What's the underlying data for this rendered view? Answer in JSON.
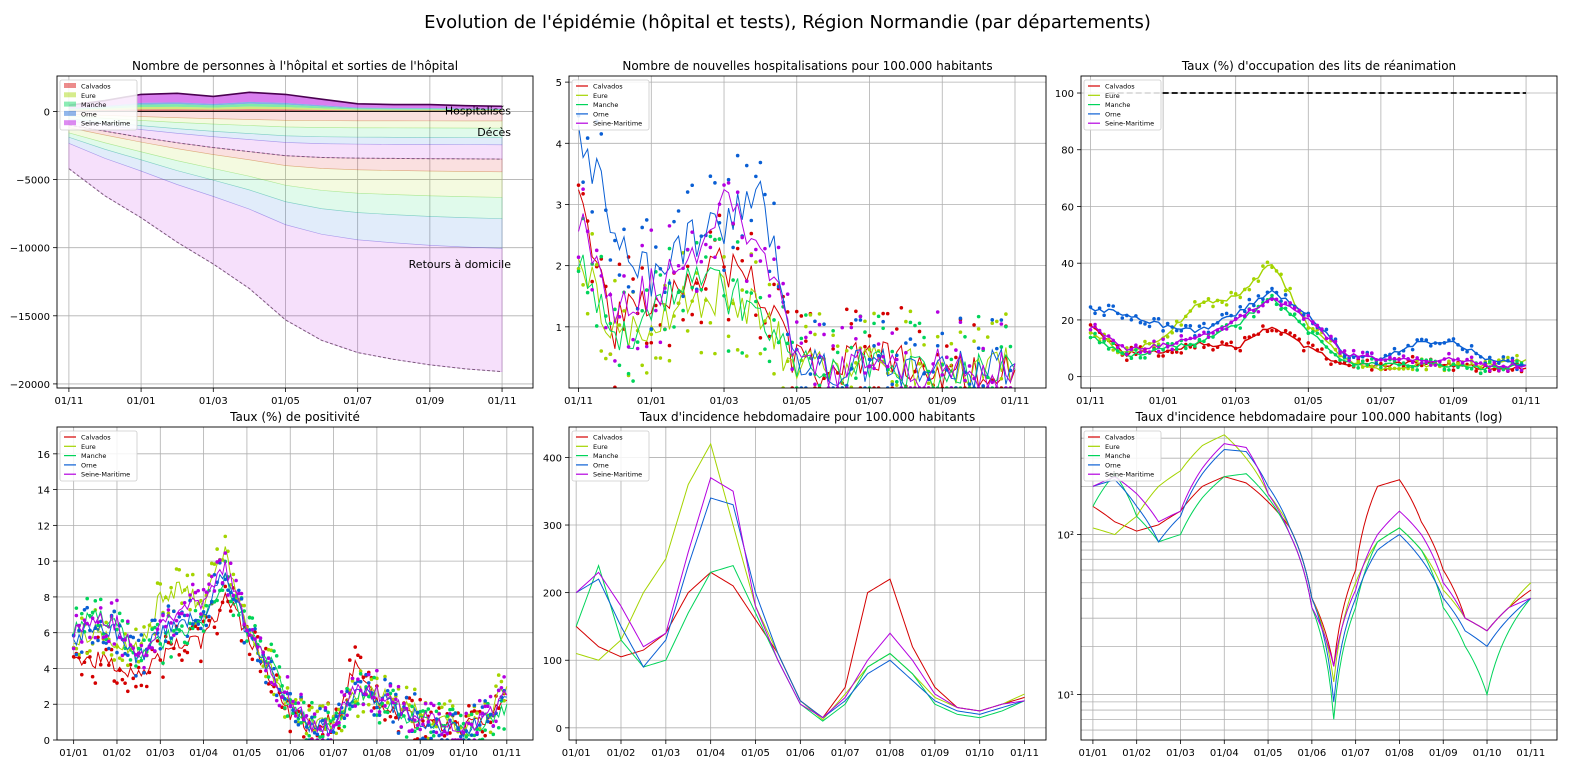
{
  "page_title": "Evolution de l'épidémie (hôpital et tests), Région Normandie (par départements)",
  "colors": {
    "Calvados": "#d40000",
    "Eure": "#a4d400",
    "Manche": "#00d45a",
    "Orne": "#0a5fd4",
    "Seine-Maritime": "#b400e0"
  },
  "legend_entries": [
    "Calvados",
    "Eure",
    "Manche",
    "Orne",
    "Seine-Maritime"
  ],
  "chart_data": [
    {
      "id": "hospital",
      "type": "area",
      "title": "Nombre de personnes à l'hôpital et sorties de l'hôpital",
      "x_ticks": [
        "01/11",
        "01/01",
        "01/03",
        "01/05",
        "01/07",
        "01/09",
        "01/11"
      ],
      "y_ticks": [
        "0",
        "−5000",
        "−10000",
        "−15000",
        "−20000"
      ],
      "y_tick_values": [
        0,
        -5000,
        -10000,
        -15000,
        -20000
      ],
      "ylim": [
        -20300,
        2600
      ],
      "legend": "top-left",
      "annotations": [
        "Hospitalisés",
        "Décès",
        "Retours à domicile"
      ],
      "x_months": [
        0,
        1,
        2,
        3,
        4,
        5,
        6,
        7,
        8,
        9,
        10,
        11,
        12
      ],
      "hospitalises_total": [
        450,
        800,
        1250,
        1330,
        1100,
        1400,
        1250,
        900,
        560,
        500,
        500,
        420,
        380
      ],
      "deces_total": [
        -1000,
        -1450,
        -1900,
        -2300,
        -2650,
        -2950,
        -3250,
        -3380,
        -3430,
        -3450,
        -3470,
        -3480,
        -3500
      ],
      "retours_total": [
        -4200,
        -6200,
        -7800,
        -9600,
        -11200,
        -13000,
        -15300,
        -16800,
        -17700,
        -18200,
        -18600,
        -18900,
        -19100
      ]
    },
    {
      "id": "new-hosp",
      "type": "line",
      "title": "Nombre de nouvelles hospitalisations pour 100.000 habitants",
      "x_ticks": [
        "01/11",
        "01/01",
        "01/03",
        "01/05",
        "01/07",
        "01/09",
        "01/11"
      ],
      "y_ticks": [
        "1",
        "2",
        "3",
        "4",
        "5"
      ],
      "y_tick_values": [
        1,
        2,
        3,
        4,
        5
      ],
      "ylim": [
        0,
        5.1
      ],
      "legend": "top-left",
      "x_months": [
        0,
        1,
        2,
        3,
        4,
        5,
        6,
        7,
        8,
        9,
        10,
        11,
        12
      ],
      "series": [
        {
          "name": "Calvados",
          "values": [
            3.2,
            1.0,
            1.5,
            1.8,
            2.0,
            1.6,
            0.4,
            0.2,
            0.6,
            0.3,
            0.2,
            0.2,
            0.3
          ]
        },
        {
          "name": "Eure",
          "values": [
            2.2,
            0.8,
            1.1,
            1.4,
            1.6,
            1.2,
            0.3,
            0.2,
            0.4,
            0.3,
            0.2,
            0.2,
            0.4
          ]
        },
        {
          "name": "Manche",
          "values": [
            2.0,
            0.7,
            1.2,
            1.8,
            1.6,
            1.2,
            0.3,
            0.2,
            0.3,
            0.2,
            0.2,
            0.2,
            0.3
          ]
        },
        {
          "name": "Orne",
          "values": [
            4.2,
            2.6,
            1.8,
            2.4,
            2.6,
            3.2,
            0.5,
            0.2,
            0.4,
            0.3,
            0.3,
            0.3,
            0.4
          ]
        },
        {
          "name": "Seine-Maritime",
          "values": [
            2.8,
            1.4,
            1.6,
            2.0,
            3.2,
            2.4,
            0.4,
            0.2,
            0.4,
            0.3,
            0.3,
            0.2,
            0.4
          ]
        }
      ]
    },
    {
      "id": "rea",
      "type": "line",
      "title": "Taux (%) d'occupation des lits de réanimation",
      "x_ticks": [
        "01/11",
        "01/01",
        "01/03",
        "01/05",
        "01/07",
        "01/09",
        "01/11"
      ],
      "y_ticks": [
        "0",
        "20",
        "40",
        "60",
        "80",
        "100"
      ],
      "y_tick_values": [
        0,
        20,
        40,
        60,
        80,
        100
      ],
      "ylim": [
        -4,
        106
      ],
      "legend": "top-left",
      "reference_line": 100,
      "x_months": [
        0,
        1,
        2,
        3,
        4,
        5,
        6,
        7,
        8,
        9,
        10,
        11,
        12
      ],
      "series": [
        {
          "name": "Calvados",
          "values": [
            18,
            8,
            9,
            12,
            10,
            18,
            10,
            4,
            4,
            5,
            4,
            3,
            3
          ]
        },
        {
          "name": "Eure",
          "values": [
            16,
            8,
            14,
            26,
            28,
            40,
            18,
            6,
            2,
            4,
            4,
            4,
            6
          ]
        },
        {
          "name": "Manche",
          "values": [
            14,
            7,
            10,
            12,
            18,
            28,
            16,
            5,
            4,
            4,
            4,
            3,
            4
          ]
        },
        {
          "name": "Orne",
          "values": [
            24,
            22,
            18,
            16,
            22,
            30,
            22,
            8,
            6,
            12,
            12,
            6,
            4
          ]
        },
        {
          "name": "Seine-Maritime",
          "values": [
            18,
            10,
            11,
            14,
            20,
            28,
            20,
            8,
            6,
            6,
            6,
            4,
            4
          ]
        }
      ]
    },
    {
      "id": "positivity",
      "type": "line",
      "title": "Taux (%) de positivité",
      "x_ticks": [
        "01/01",
        "01/02",
        "01/03",
        "01/04",
        "01/05",
        "01/06",
        "01/07",
        "01/08",
        "01/09",
        "01/10",
        "01/11"
      ],
      "y_ticks": [
        "0",
        "2",
        "4",
        "6",
        "8",
        "10",
        "12",
        "14",
        "16"
      ],
      "y_tick_values": [
        0,
        2,
        4,
        6,
        8,
        10,
        12,
        14,
        16
      ],
      "ylim": [
        0,
        17.5
      ],
      "legend": "top-left",
      "x_months": [
        0,
        0.5,
        1,
        1.5,
        2,
        2.5,
        3,
        3.5,
        4,
        4.5,
        5,
        5.5,
        6,
        6.5,
        7,
        7.5,
        8,
        8.5,
        9,
        9.5,
        10
      ],
      "series": [
        {
          "name": "Calvados",
          "values": [
            4.5,
            4.5,
            4.2,
            3.8,
            4.5,
            5.5,
            5.5,
            8.0,
            6.0,
            3.5,
            1.5,
            0.7,
            1.2,
            4.0,
            2.0,
            1.5,
            1.0,
            0.8,
            0.7,
            1.2,
            2.2
          ]
        },
        {
          "name": "Eure",
          "values": [
            5.5,
            6.0,
            5.5,
            5.0,
            8.0,
            8.5,
            7.5,
            10.5,
            6.0,
            4.0,
            1.8,
            0.8,
            0.9,
            2.5,
            2.8,
            1.8,
            1.5,
            1.0,
            0.8,
            1.2,
            3.0
          ]
        },
        {
          "name": "Manche",
          "values": [
            6.0,
            7.0,
            6.5,
            4.5,
            5.5,
            6.0,
            6.5,
            9.0,
            6.0,
            4.5,
            2.0,
            0.8,
            0.5,
            2.5,
            2.2,
            1.5,
            1.2,
            0.7,
            0.5,
            1.0,
            2.0
          ]
        },
        {
          "name": "Orne",
          "values": [
            5.5,
            6.5,
            6.0,
            4.5,
            6.0,
            6.5,
            7.0,
            9.5,
            6.0,
            4.0,
            1.8,
            0.8,
            0.6,
            2.6,
            2.4,
            1.6,
            1.2,
            0.8,
            0.6,
            1.1,
            2.4
          ]
        },
        {
          "name": "Seine-Maritime",
          "values": [
            6.0,
            7.0,
            6.5,
            4.5,
            6.5,
            7.5,
            7.5,
            9.8,
            6.2,
            4.2,
            2.0,
            0.9,
            0.8,
            3.0,
            2.6,
            1.8,
            1.4,
            1.0,
            0.7,
            1.2,
            2.5
          ]
        }
      ]
    },
    {
      "id": "incidence",
      "type": "line",
      "title": "Taux d'incidence hebdomadaire pour 100.000 habitants",
      "x_ticks": [
        "01/01",
        "01/02",
        "01/03",
        "01/04",
        "01/05",
        "01/06",
        "01/07",
        "01/08",
        "01/09",
        "01/10",
        "01/11"
      ],
      "y_ticks": [
        "0",
        "100",
        "200",
        "300",
        "400"
      ],
      "y_tick_values": [
        0,
        100,
        200,
        300,
        400
      ],
      "ylim": [
        -18,
        445
      ],
      "legend": "top-left",
      "x_months": [
        0,
        0.5,
        1,
        1.5,
        2,
        2.5,
        3,
        3.5,
        4,
        4.5,
        5,
        5.5,
        6,
        6.5,
        7,
        7.5,
        8,
        8.5,
        9,
        9.5,
        10
      ],
      "series": [
        {
          "name": "Calvados",
          "values": [
            150,
            120,
            105,
            115,
            140,
            200,
            230,
            210,
            160,
            110,
            40,
            15,
            60,
            200,
            220,
            120,
            60,
            30,
            25,
            35,
            45
          ]
        },
        {
          "name": "Eure",
          "values": [
            110,
            100,
            130,
            200,
            250,
            360,
            420,
            300,
            180,
            110,
            40,
            12,
            50,
            90,
            110,
            80,
            45,
            30,
            25,
            35,
            50
          ]
        },
        {
          "name": "Manche",
          "values": [
            150,
            240,
            130,
            90,
            100,
            170,
            230,
            240,
            170,
            100,
            35,
            10,
            35,
            90,
            110,
            80,
            35,
            20,
            15,
            25,
            40
          ]
        },
        {
          "name": "Orne",
          "values": [
            200,
            220,
            150,
            90,
            130,
            240,
            340,
            330,
            200,
            110,
            40,
            15,
            40,
            80,
            100,
            70,
            40,
            25,
            20,
            30,
            40
          ]
        },
        {
          "name": "Seine-Maritime",
          "values": [
            200,
            230,
            180,
            120,
            140,
            260,
            370,
            350,
            180,
            100,
            35,
            15,
            45,
            100,
            140,
            100,
            50,
            30,
            25,
            35,
            40
          ]
        }
      ]
    },
    {
      "id": "incidence-log",
      "type": "line",
      "title": "Taux d'incidence hebdomadaire pour 100.000 habitants (log)",
      "x_ticks": [
        "01/01",
        "01/02",
        "01/03",
        "01/04",
        "01/05",
        "01/06",
        "01/07",
        "01/08",
        "01/09",
        "01/10",
        "01/11"
      ],
      "y_ticks": [
        "10¹",
        "10²"
      ],
      "y_tick_values": [
        10,
        100
      ],
      "y_scale": "log",
      "ylim": [
        5.2,
        470
      ],
      "legend": "top-left",
      "x_months": [
        0,
        0.5,
        1,
        1.5,
        2,
        2.5,
        3,
        3.5,
        4,
        4.5,
        5,
        5.5,
        6,
        6.5,
        7,
        7.5,
        8,
        8.5,
        9,
        9.5,
        10
      ],
      "series": [
        {
          "name": "Calvados",
          "values": [
            150,
            120,
            105,
            115,
            140,
            200,
            230,
            210,
            160,
            110,
            40,
            15,
            60,
            200,
            220,
            120,
            60,
            30,
            25,
            35,
            45
          ]
        },
        {
          "name": "Eure",
          "values": [
            110,
            100,
            130,
            200,
            250,
            360,
            420,
            300,
            180,
            110,
            40,
            12,
            50,
            90,
            110,
            80,
            45,
            30,
            25,
            35,
            50
          ]
        },
        {
          "name": "Manche",
          "values": [
            150,
            240,
            130,
            90,
            100,
            170,
            230,
            240,
            170,
            100,
            35,
            7,
            35,
            90,
            110,
            80,
            35,
            20,
            10,
            25,
            40
          ]
        },
        {
          "name": "Orne",
          "values": [
            200,
            220,
            150,
            90,
            130,
            240,
            340,
            330,
            200,
            110,
            40,
            9,
            40,
            80,
            100,
            70,
            40,
            25,
            20,
            30,
            40
          ]
        },
        {
          "name": "Seine-Maritime",
          "values": [
            200,
            230,
            180,
            120,
            140,
            260,
            370,
            350,
            180,
            100,
            35,
            15,
            45,
            100,
            140,
            100,
            50,
            30,
            25,
            35,
            40
          ]
        }
      ]
    }
  ]
}
